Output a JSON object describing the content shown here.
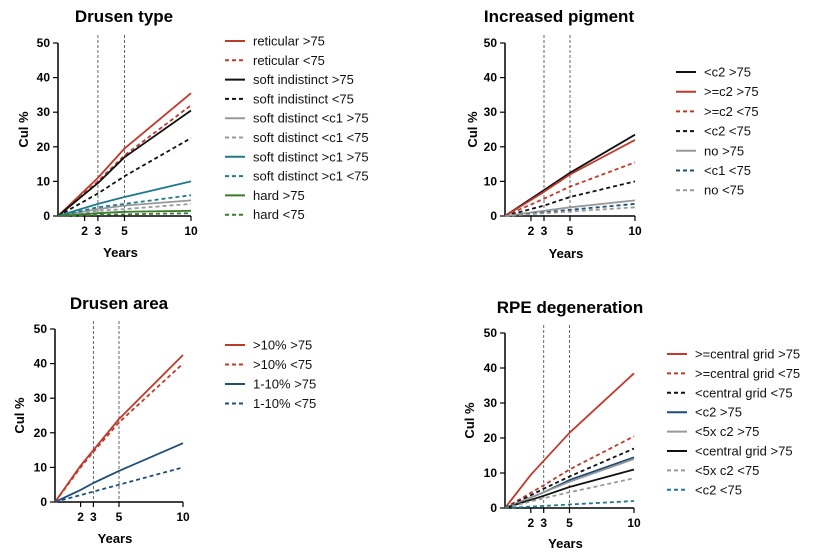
{
  "chart_data": [
    {
      "type": "line",
      "title": "Drusen type",
      "xlabel": "Years",
      "ylabel": "Cul %",
      "xlim": [
        0,
        10
      ],
      "ylim": [
        0,
        50
      ],
      "x_ticks": [
        2,
        3,
        5,
        10
      ],
      "y_ticks": [
        0,
        10,
        20,
        30,
        40,
        50
      ],
      "reference_lines_x": [
        3,
        5
      ],
      "legend_position": "right",
      "grid": false,
      "series": [
        {
          "name": "reticular >75",
          "color": "#c0392b",
          "dash": false,
          "x": [
            0,
            3,
            5,
            10
          ],
          "y": [
            0,
            11,
            19.5,
            35.5
          ]
        },
        {
          "name": "reticular <75",
          "color": "#c0392b",
          "dash": true,
          "x": [
            0,
            3,
            5,
            10
          ],
          "y": [
            0,
            10,
            17.5,
            32
          ]
        },
        {
          "name": "soft indistinct >75",
          "color": "#111111",
          "dash": false,
          "x": [
            0,
            3,
            5,
            10
          ],
          "y": [
            0,
            9.5,
            17,
            30.5
          ]
        },
        {
          "name": "soft indistinct <75",
          "color": "#111111",
          "dash": true,
          "x": [
            0,
            3,
            5,
            10
          ],
          "y": [
            0,
            6.5,
            11.5,
            22.5
          ]
        },
        {
          "name": "soft distinct <c1 >75",
          "color": "#999999",
          "dash": false,
          "x": [
            0,
            3,
            5,
            10
          ],
          "y": [
            0,
            2,
            3,
            4.5
          ]
        },
        {
          "name": "soft distinct <c1 <75",
          "color": "#999999",
          "dash": true,
          "x": [
            0,
            3,
            5,
            10
          ],
          "y": [
            0,
            1.5,
            2,
            3.5
          ]
        },
        {
          "name": "soft distinct >c1 >75",
          "color": "#1f7a8c",
          "dash": false,
          "x": [
            0,
            3,
            5,
            10
          ],
          "y": [
            0,
            3.5,
            5.5,
            10
          ]
        },
        {
          "name": "soft distinct >c1 <75",
          "color": "#1f7a8c",
          "dash": true,
          "x": [
            0,
            3,
            5,
            10
          ],
          "y": [
            0,
            2.5,
            3.5,
            6
          ]
        },
        {
          "name": "hard >75",
          "color": "#3c7a2e",
          "dash": false,
          "x": [
            0,
            3,
            5,
            10
          ],
          "y": [
            0,
            0.8,
            1.2,
            1.5
          ]
        },
        {
          "name": "hard <75",
          "color": "#3c7a2e",
          "dash": true,
          "x": [
            0,
            3,
            5,
            10
          ],
          "y": [
            0,
            0.3,
            0.5,
            0.8
          ]
        }
      ]
    },
    {
      "type": "line",
      "title": "Increased pigment",
      "xlabel": "Years",
      "ylabel": "Cul %",
      "xlim": [
        0,
        10
      ],
      "ylim": [
        0,
        50
      ],
      "x_ticks": [
        2,
        3,
        5,
        10
      ],
      "y_ticks": [
        0,
        10,
        20,
        30,
        40,
        50
      ],
      "reference_lines_x": [
        3,
        5
      ],
      "legend_position": "right",
      "grid": false,
      "series": [
        {
          "name": "<c2 >75",
          "color": "#111111",
          "dash": false,
          "x": [
            0,
            3,
            5,
            10
          ],
          "y": [
            0,
            7.5,
            12.5,
            23.5
          ]
        },
        {
          "name": ">=c2 >75",
          "color": "#c0392b",
          "dash": false,
          "x": [
            0,
            3,
            5,
            10
          ],
          "y": [
            0,
            7,
            12,
            22
          ]
        },
        {
          "name": ">=c2 <75",
          "color": "#c0392b",
          "dash": true,
          "x": [
            0,
            3,
            5,
            10
          ],
          "y": [
            0,
            5,
            8.5,
            15.5
          ]
        },
        {
          "name": "<c2 <75",
          "color": "#111111",
          "dash": true,
          "x": [
            0,
            3,
            5,
            10
          ],
          "y": [
            0,
            3,
            5.5,
            10
          ]
        },
        {
          "name": "no >75",
          "color": "#999999",
          "dash": false,
          "x": [
            0,
            3,
            5,
            10
          ],
          "y": [
            0,
            1.5,
            2.5,
            4.5
          ]
        },
        {
          "name": "<c1 <75",
          "color": "#1f4e79",
          "dash": true,
          "x": [
            0,
            3,
            5,
            10
          ],
          "y": [
            0,
            1,
            1.8,
            3.5
          ]
        },
        {
          "name": "no <75",
          "color": "#999999",
          "dash": true,
          "x": [
            0,
            3,
            5,
            10
          ],
          "y": [
            0,
            0.8,
            1.3,
            2.5
          ]
        }
      ]
    },
    {
      "type": "line",
      "title": "Drusen area",
      "xlabel": "Years",
      "ylabel": "Cul %",
      "xlim": [
        0,
        10
      ],
      "ylim": [
        0,
        50
      ],
      "x_ticks": [
        2,
        3,
        5,
        10
      ],
      "y_ticks": [
        0,
        10,
        20,
        30,
        40,
        50
      ],
      "reference_lines_x": [
        3,
        5
      ],
      "legend_position": "right",
      "grid": false,
      "series": [
        {
          "name": ">10% >75",
          "color": "#c0392b",
          "dash": false,
          "x": [
            0,
            2,
            3,
            5,
            10
          ],
          "y": [
            0,
            10.5,
            15,
            24,
            42.5
          ]
        },
        {
          "name": ">10% <75",
          "color": "#c0392b",
          "dash": true,
          "x": [
            0,
            2,
            3,
            5,
            10
          ],
          "y": [
            0,
            10,
            14.5,
            23,
            40
          ]
        },
        {
          "name": "1-10% >75",
          "color": "#1f4e79",
          "dash": false,
          "x": [
            0,
            2,
            3,
            5,
            10
          ],
          "y": [
            0,
            3.5,
            5.5,
            9,
            17
          ]
        },
        {
          "name": "1-10% <75",
          "color": "#1f4e79",
          "dash": true,
          "x": [
            0,
            2,
            3,
            5,
            10
          ],
          "y": [
            0,
            2,
            3,
            5,
            10
          ]
        }
      ]
    },
    {
      "type": "line",
      "title": "RPE degeneration",
      "xlabel": "Years",
      "ylabel": "Cul %",
      "xlim": [
        0,
        10
      ],
      "ylim": [
        0,
        50
      ],
      "x_ticks": [
        2,
        3,
        5,
        10
      ],
      "y_ticks": [
        0,
        10,
        20,
        30,
        40,
        50
      ],
      "reference_lines_x": [
        3,
        5
      ],
      "legend_position": "right",
      "grid": false,
      "series": [
        {
          "name": ">=central grid >75",
          "color": "#c0392b",
          "dash": false,
          "x": [
            0,
            2,
            3,
            5,
            10
          ],
          "y": [
            0,
            9.5,
            13.5,
            21.5,
            38.5
          ]
        },
        {
          "name": ">=central grid <75",
          "color": "#c0392b",
          "dash": true,
          "x": [
            0,
            3,
            5,
            10
          ],
          "y": [
            0,
            6.5,
            11,
            20.5
          ]
        },
        {
          "name": "<central grid <75",
          "color": "#111111",
          "dash": true,
          "x": [
            0,
            3,
            5,
            10
          ],
          "y": [
            0,
            5.5,
            9,
            17
          ]
        },
        {
          "name": "<c2 >75",
          "color": "#1f4e79",
          "dash": false,
          "x": [
            0,
            3,
            5,
            10
          ],
          "y": [
            0,
            4.5,
            8,
            14.5
          ]
        },
        {
          "name": "<5x c2 >75",
          "color": "#999999",
          "dash": false,
          "x": [
            0,
            3,
            5,
            10
          ],
          "y": [
            0,
            4.5,
            7.5,
            14
          ]
        },
        {
          "name": "<central grid >75",
          "color": "#111111",
          "dash": false,
          "x": [
            0,
            3,
            5,
            10
          ],
          "y": [
            0,
            3.5,
            6,
            11
          ]
        },
        {
          "name": "<5x c2 <75",
          "color": "#999999",
          "dash": true,
          "x": [
            0,
            3,
            5,
            10
          ],
          "y": [
            0,
            2.8,
            4.5,
            8.5
          ]
        },
        {
          "name": "<c2 <75",
          "color": "#1f7a8c",
          "dash": true,
          "x": [
            0,
            3,
            5,
            10
          ],
          "y": [
            0,
            0.6,
            1,
            2
          ]
        }
      ]
    }
  ]
}
